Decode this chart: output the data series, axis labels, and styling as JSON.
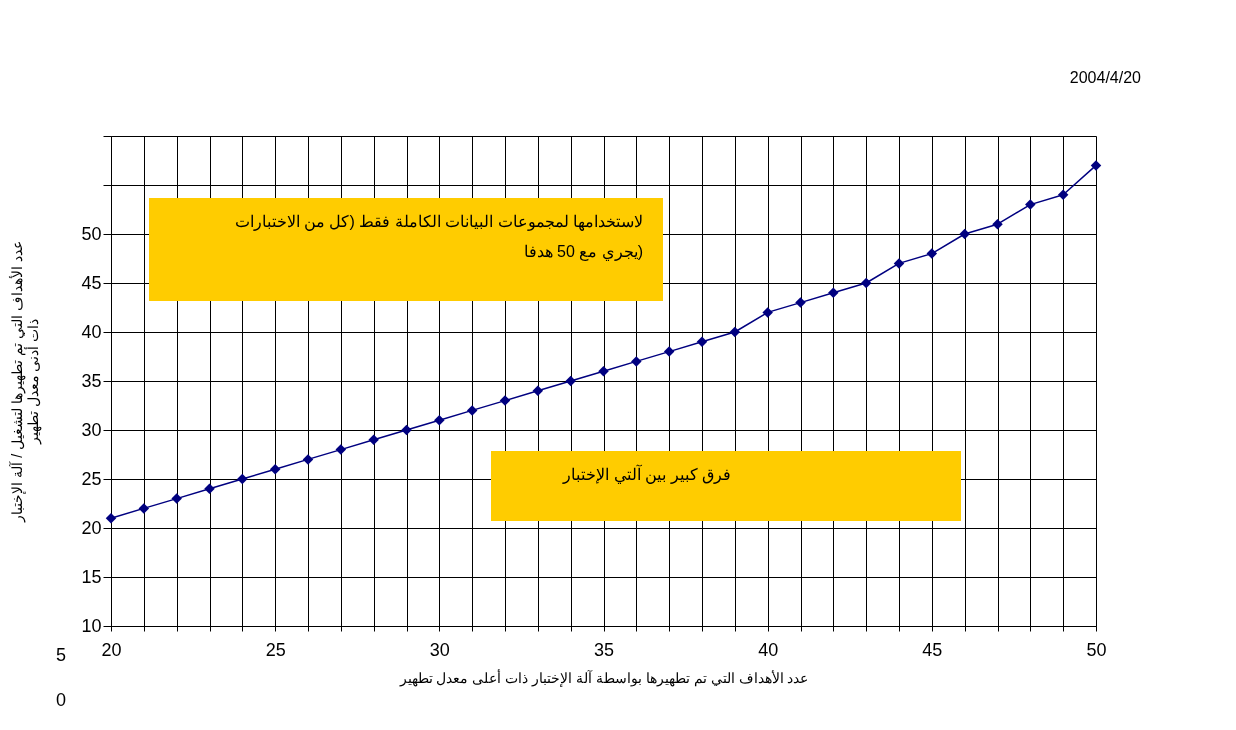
{
  "chart_data": {
    "type": "line",
    "xlabel": "عدد الأهداف التي تم تطهيرها بواسطة آلة الإختبار  ذات أعلى معدل تطهير",
    "ylabel": "عدد الأهداف التي تم تطهيرها لتشغيل / آلة الإختبار\nذات أدنى معدل  تطهير",
    "x": [
      20,
      21,
      22,
      23,
      24,
      25,
      26,
      27,
      28,
      29,
      30,
      31,
      32,
      33,
      34,
      35,
      36,
      37,
      38,
      39,
      40,
      41,
      42,
      43,
      44,
      45,
      46,
      47,
      48,
      49,
      50
    ],
    "series": [
      {
        "color": "#000080",
        "values": [
          21,
          22,
          23,
          24,
          25,
          26,
          27,
          28,
          29,
          30,
          31,
          32,
          33,
          34,
          35,
          36,
          37,
          38,
          39,
          40,
          42,
          43,
          44,
          45,
          47,
          48,
          50,
          51,
          53,
          54,
          57
        ]
      }
    ],
    "xlim": [
      20,
      50
    ],
    "xticks": [
      20,
      {
        "value": 21,
        "label": null
      },
      {
        "value": 22,
        "label": null
      },
      {
        "value": 23,
        "label": null
      },
      {
        "value": 24,
        "label": null
      },
      25,
      {
        "value": 26,
        "label": null
      },
      {
        "value": 27,
        "label": null
      },
      {
        "value": 28,
        "label": null
      },
      {
        "value": 29,
        "label": null
      },
      30,
      {
        "value": 31,
        "label": null
      },
      {
        "value": 32,
        "label": null
      },
      {
        "value": 33,
        "label": null
      },
      {
        "value": 34,
        "label": null
      },
      35,
      {
        "value": 36,
        "label": null
      },
      {
        "value": 37,
        "label": null
      },
      {
        "value": 38,
        "label": null
      },
      {
        "value": 39,
        "label": null
      },
      40,
      {
        "value": 41,
        "label": null
      },
      {
        "value": 42,
        "label": null
      },
      {
        "value": 43,
        "label": null
      },
      {
        "value": 44,
        "label": null
      },
      45,
      {
        "value": 46,
        "label": null
      },
      {
        "value": 47,
        "label": null
      },
      {
        "value": 48,
        "label": null
      },
      {
        "value": 49,
        "label": null
      },
      50
    ],
    "ylim": [
      10,
      60
    ],
    "yticks": [
      10,
      15,
      20,
      25,
      30,
      35,
      40,
      45,
      50,
      {
        "value": 55,
        "label": null
      },
      {
        "value": 60,
        "label": null
      }
    ],
    "grid": true,
    "legend": false,
    "marker": "diamond",
    "line_style": "solid",
    "annotations": [
      "لاستخدامها لمجموعات البيانات الكاملة فقط (كل من الاختبارات\nيجري مع 50 هدفا)",
      "فرق كبير بين آلتي الإختبار",
      "2004/4/20",
      "5",
      "0"
    ]
  }
}
